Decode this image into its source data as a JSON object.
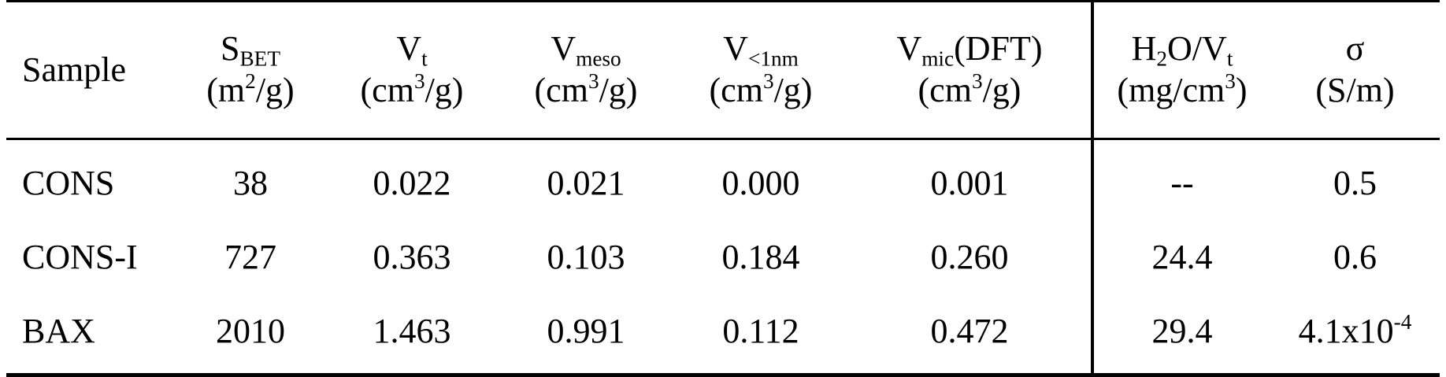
{
  "table": {
    "headers": [
      {
        "name": "Sample",
        "unit": ""
      },
      {
        "name": "S",
        "sub": "BET",
        "unit_pre": "(m",
        "unit_sup": "2",
        "unit_post": "/g)"
      },
      {
        "name": "V",
        "sub": "t",
        "unit_pre": "(cm",
        "unit_sup": "3",
        "unit_post": "/g)"
      },
      {
        "name": "V",
        "sub": "meso",
        "unit_pre": "(cm",
        "unit_sup": "3",
        "unit_post": "/g)"
      },
      {
        "name": "V",
        "sub": "<1nm",
        "unit_pre": "(cm",
        "unit_sup": "3",
        "unit_post": "/g)"
      },
      {
        "name": "V",
        "sub": "mic",
        "name_post": "(DFT)",
        "unit_pre": "(cm",
        "unit_sup": "3",
        "unit_post": "/g)"
      },
      {
        "name": "H",
        "sub": "2",
        "name_post": "O/V",
        "sub2": "t",
        "unit_pre": "(mg/cm",
        "unit_sup": "3",
        "unit_post": ")"
      },
      {
        "name": "σ",
        "unit": "(S/m)"
      }
    ],
    "rows": [
      {
        "sample": "CONS",
        "sbet": "38",
        "vt": "0.022",
        "vmeso": "0.021",
        "v1nm": "0.000",
        "vmic": "0.001",
        "h2o": "--",
        "sigma": "0.5",
        "sigma_sup": ""
      },
      {
        "sample": "CONS-I",
        "sbet": "727",
        "vt": "0.363",
        "vmeso": "0.103",
        "v1nm": "0.184",
        "vmic": "0.260",
        "h2o": "24.4",
        "sigma": "0.6",
        "sigma_sup": ""
      },
      {
        "sample": "BAX",
        "sbet": "2010",
        "vt": "1.463",
        "vmeso": "0.991",
        "v1nm": "0.112",
        "vmic": "0.472",
        "h2o": "29.4",
        "sigma": "4.1x10",
        "sigma_sup": "-4"
      }
    ]
  }
}
